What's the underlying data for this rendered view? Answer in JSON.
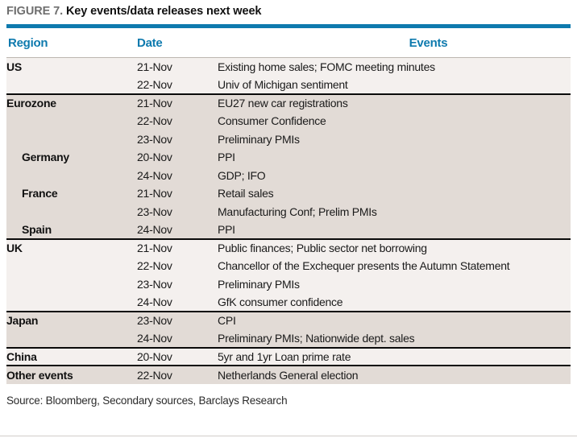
{
  "figure": {
    "label": "FIGURE 7.",
    "title": "Key events/data releases next week"
  },
  "table": {
    "headers": {
      "region": "Region",
      "date": "Date",
      "events": "Events"
    },
    "sections": [
      {
        "name": "us",
        "shade": "light",
        "rows": [
          {
            "region": "US",
            "indent": false,
            "date": "21-Nov",
            "event": "Existing home sales; FOMC meeting minutes"
          },
          {
            "region": "",
            "indent": false,
            "date": "22-Nov",
            "event": "Univ of Michigan sentiment"
          }
        ]
      },
      {
        "name": "eurozone",
        "shade": "beige",
        "rows": [
          {
            "region": "Eurozone",
            "indent": false,
            "date": "21-Nov",
            "event": "EU27 new car registrations"
          },
          {
            "region": "",
            "indent": false,
            "date": "22-Nov",
            "event": "Consumer Confidence"
          },
          {
            "region": "",
            "indent": false,
            "date": "23-Nov",
            "event": "Preliminary PMIs"
          },
          {
            "region": "Germany",
            "indent": true,
            "date": "20-Nov",
            "event": "PPI"
          },
          {
            "region": "",
            "indent": false,
            "date": "24-Nov",
            "event": "GDP; IFO"
          },
          {
            "region": "France",
            "indent": true,
            "date": "21-Nov",
            "event": "Retail sales"
          },
          {
            "region": "",
            "indent": false,
            "date": "23-Nov",
            "event": "Manufacturing Conf; Prelim PMIs"
          },
          {
            "region": "Spain",
            "indent": true,
            "date": "24-Nov",
            "event": "PPI"
          }
        ]
      },
      {
        "name": "uk",
        "shade": "light",
        "rows": [
          {
            "region": "UK",
            "indent": false,
            "date": "21-Nov",
            "event": "Public finances; Public sector net borrowing"
          },
          {
            "region": "",
            "indent": false,
            "date": "22-Nov",
            "event": "Chancellor of the Exchequer presents the Autumn Statement"
          },
          {
            "region": "",
            "indent": false,
            "date": "23-Nov",
            "event": "Preliminary PMIs"
          },
          {
            "region": "",
            "indent": false,
            "date": "24-Nov",
            "event": "GfK consumer confidence"
          }
        ]
      },
      {
        "name": "japan",
        "shade": "beige",
        "rows": [
          {
            "region": "Japan",
            "indent": false,
            "date": "23-Nov",
            "event": "CPI"
          },
          {
            "region": "",
            "indent": false,
            "date": "24-Nov",
            "event": "Preliminary PMIs; Nationwide dept. sales"
          }
        ]
      },
      {
        "name": "china",
        "shade": "light",
        "rows": [
          {
            "region": "China",
            "indent": false,
            "date": "20-Nov",
            "event": "5yr and 1yr Loan prime rate"
          }
        ]
      },
      {
        "name": "other-events",
        "shade": "beige",
        "rows": [
          {
            "region": "Other events",
            "indent": false,
            "date": "22-Nov",
            "event": "Netherlands General election"
          }
        ]
      }
    ]
  },
  "source": "Source: Bloomberg, Secondary sources, Barclays Research",
  "colors": {
    "accent_blue": "#0e7aae",
    "figure_label_gray": "#6f6f6f",
    "shade_light": "#f4f0ee",
    "shade_beige": "#e2dbd6",
    "section_separator": "#0a0a0a"
  }
}
